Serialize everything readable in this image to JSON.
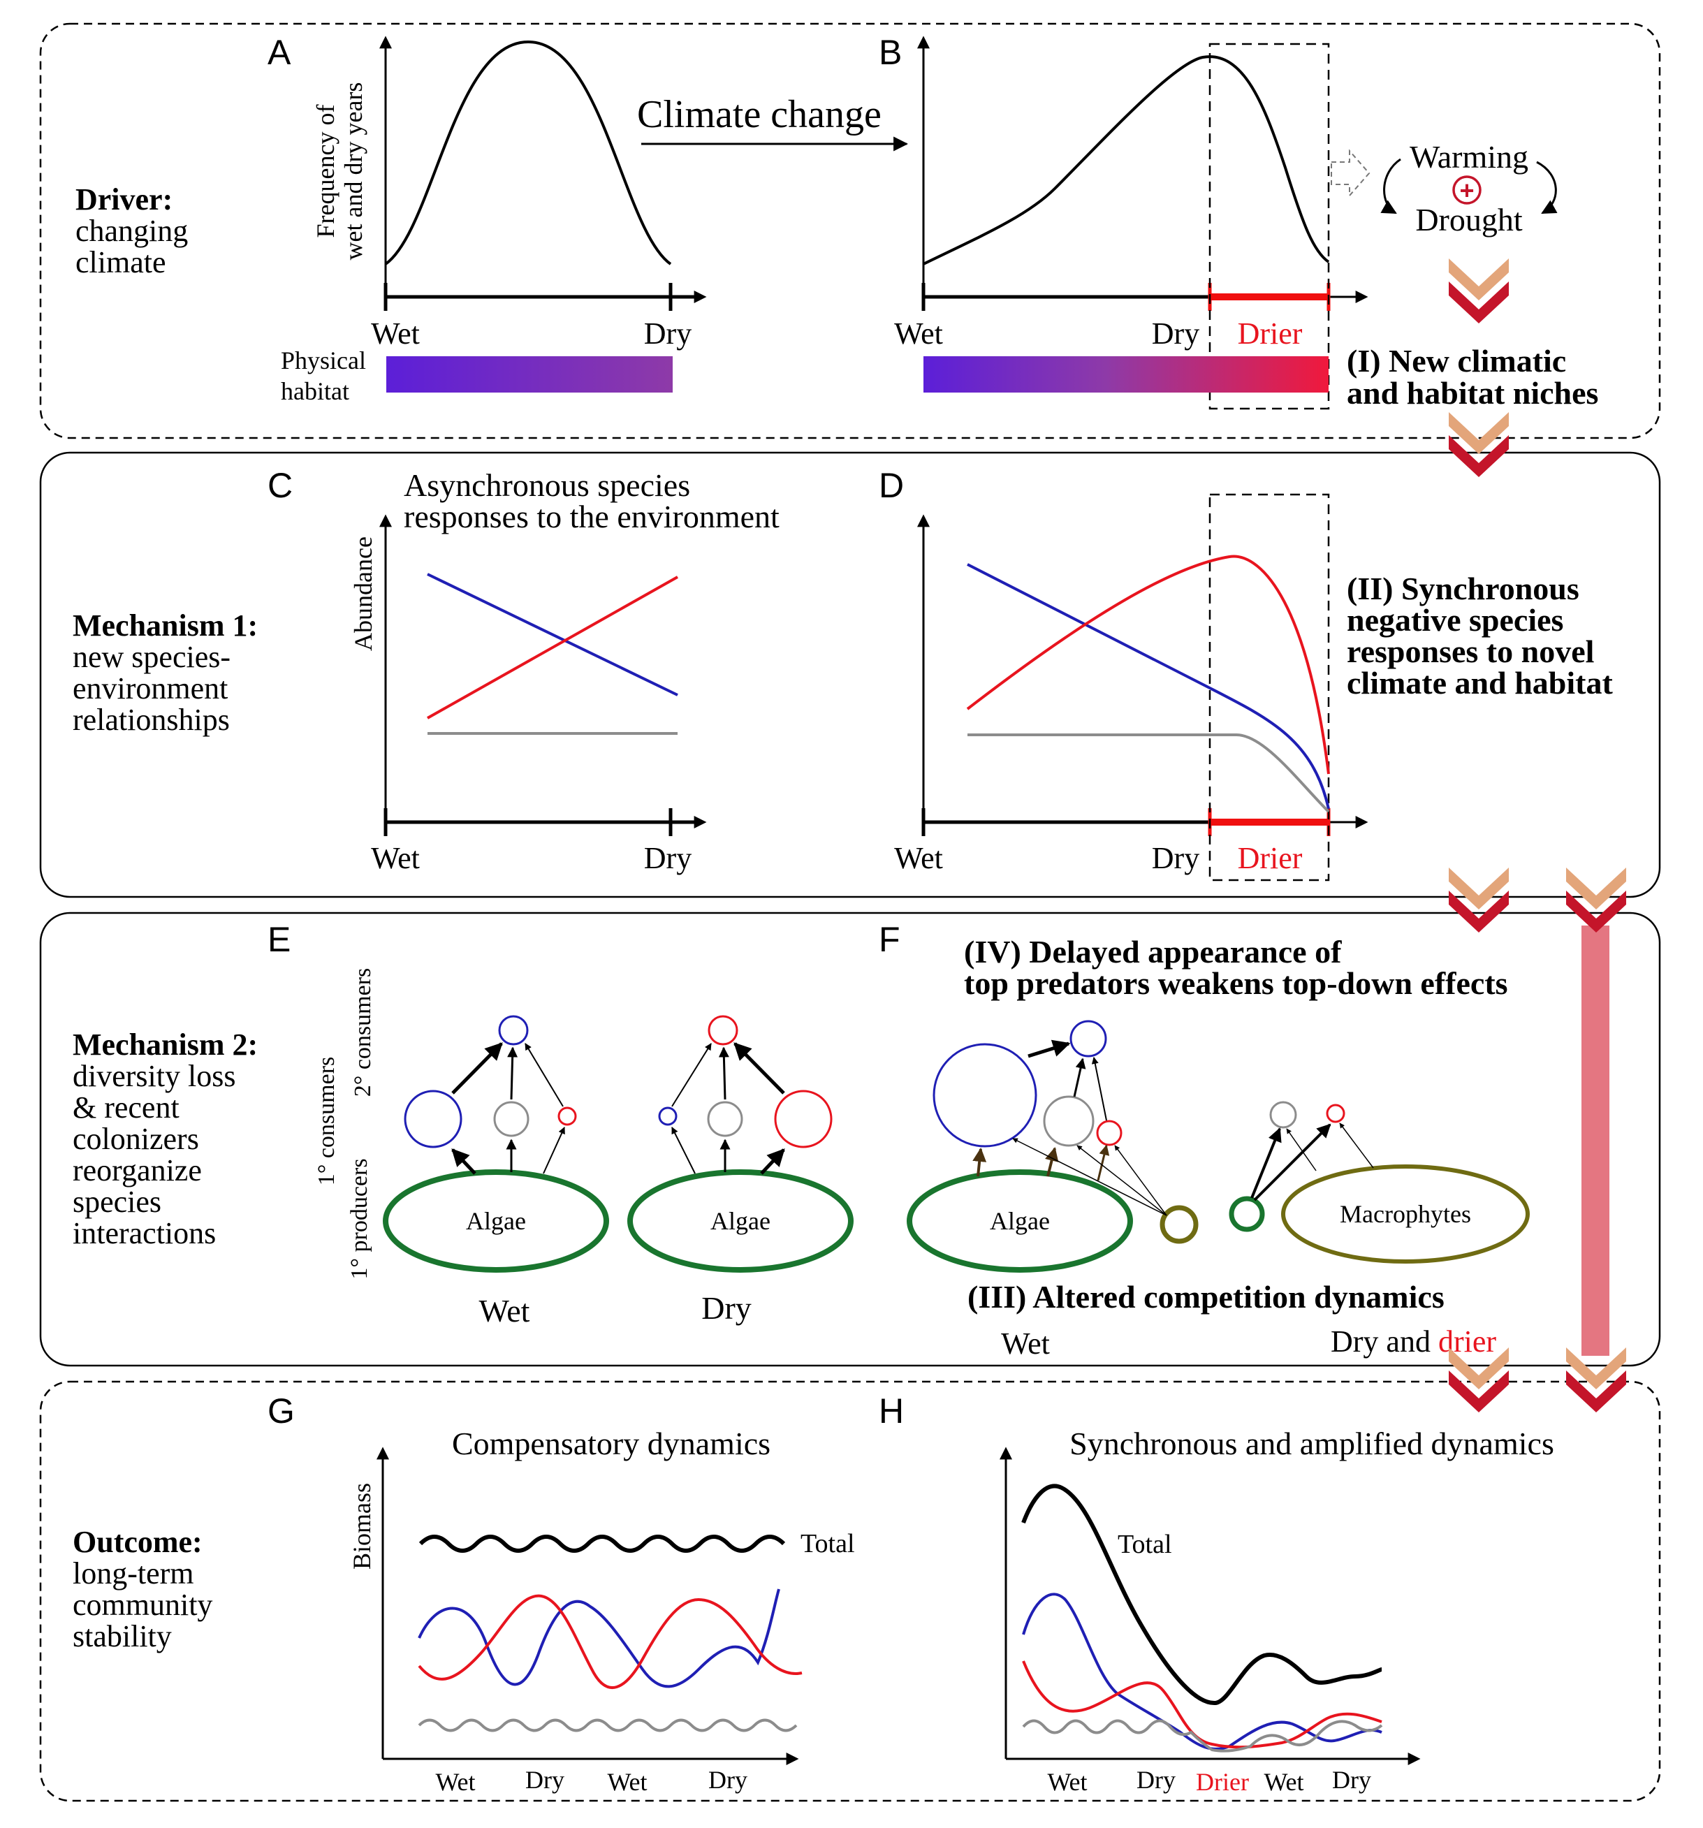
{
  "panel_letters": {
    "a": "A",
    "b": "B",
    "c": "C",
    "d": "D",
    "e": "E",
    "f": "F",
    "g": "G",
    "h": "H"
  },
  "rows": {
    "driver": {
      "title": "Driver:",
      "lines": [
        "changing",
        "climate"
      ]
    },
    "mechanism1": {
      "title": "Mechanism 1:",
      "lines": [
        "new species-",
        "environment",
        "relationships"
      ]
    },
    "mechanism2": {
      "title": "Mechanism 2:",
      "lines": [
        "diversity loss",
        "& recent",
        "colonizers",
        "reorganize",
        "species",
        "interactions"
      ]
    },
    "outcome": {
      "title": "Outcome:",
      "lines": [
        "long-term",
        "community",
        "stability"
      ]
    }
  },
  "panel_a": {
    "ylabel_line1": "Frequency of",
    "ylabel_line2": "wet and dry years",
    "x_left": "Wet",
    "x_right": "Dry",
    "habitat_label_line1": "Physical",
    "habitat_label_line2": "habitat"
  },
  "climate_change": "Climate change",
  "panel_b": {
    "x_left": "Wet",
    "x_mid": "Dry",
    "x_right": "Drier"
  },
  "feedback": {
    "top": "Warming",
    "bottom": "Drought",
    "sign": "+"
  },
  "callout_i": {
    "line1": "(I) New climatic",
    "line2": "and habitat niches"
  },
  "panel_c": {
    "title_line1": "Asynchronous species",
    "title_line2": "responses to the environment",
    "ylabel": "Abundance",
    "x_left": "Wet",
    "x_right": "Dry"
  },
  "panel_d": {
    "x_left": "Wet",
    "x_mid": "Dry",
    "x_right": "Drier"
  },
  "callout_ii": {
    "lines": [
      "(II) Synchronous",
      "negative species",
      "responses to novel",
      "climate and habitat"
    ]
  },
  "panel_e": {
    "trophic_label_top": "2° consumers",
    "trophic_label_mid": "1° consumers",
    "trophic_label_bottom": "1° producers",
    "wet_node": "Algae",
    "dry_node": "Algae",
    "wet_label": "Wet",
    "dry_label": "Dry"
  },
  "panel_f": {
    "title_line1": "(IV) Delayed appearance of",
    "title_line2": "top predators weakens top-down effects",
    "algae": "Algae",
    "macrophytes": "Macrophytes",
    "competition": "(III) Altered competition dynamics",
    "wet_label": "Wet",
    "dry_label_a": "Dry and ",
    "dry_label_b": "drier"
  },
  "panel_g": {
    "title": "Compensatory dynamics",
    "ylabel": "Biomass",
    "total_label": "Total",
    "x_ticks": [
      "Wet",
      "Dry",
      "Wet",
      "Dry"
    ]
  },
  "panel_h": {
    "title": "Synchronous and amplified dynamics",
    "total_label": "Total",
    "x_ticks": [
      "Wet",
      "Dry",
      "Drier",
      "Wet",
      "Dry"
    ]
  },
  "colors": {
    "blue": "#1f1fb4",
    "red": "#e8141e",
    "gray": "#8c8c8c",
    "algae_green": "#19752e",
    "macrophyte_olive": "#6f6b12",
    "chevron_light": "#e3a57a",
    "chevron_dark": "#c4152a",
    "gradient_start": "#5c1fd8",
    "gradient_mid": "#8e3aa8",
    "gradient_end": "#f0193c"
  }
}
